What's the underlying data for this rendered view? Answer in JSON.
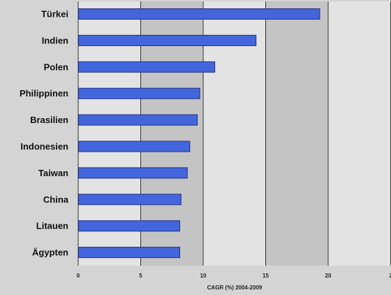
{
  "chart_data": {
    "type": "bar",
    "orientation": "horizontal",
    "categories": [
      "Türkei",
      "Indien",
      "Polen",
      "Philippinen",
      "Brasilien",
      "Indonesien",
      "Taiwan",
      "China",
      "Litauen",
      "Ägypten"
    ],
    "values": [
      19.3,
      14.2,
      10.9,
      9.7,
      9.5,
      8.9,
      8.7,
      8.2,
      8.1,
      8.1
    ],
    "xlabel": "CAGR (%) 2004-2009",
    "ylabel": "",
    "xlim": [
      0,
      25
    ],
    "xticks": [
      "0",
      "5",
      "10",
      "15",
      "20",
      "2"
    ],
    "grid": true,
    "colors": {
      "bar_fill": "#4466dd",
      "bar_stroke": "#1f2f80",
      "plot_bg_light": "#e3e3e3",
      "plot_bg_dark": "#c4c4c4",
      "page_bg": "#d4d4d4",
      "gridline": "#333333"
    }
  }
}
